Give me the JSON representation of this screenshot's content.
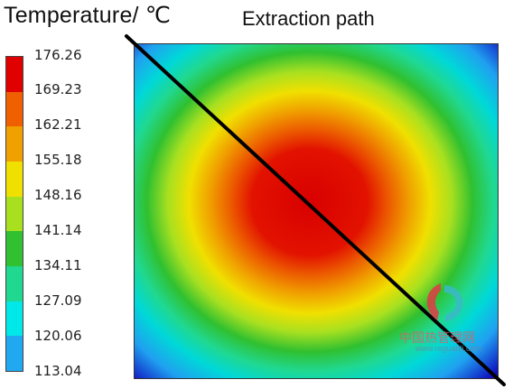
{
  "header": {
    "legend_title": "Temperature/ ℃",
    "path_label": "Extraction path"
  },
  "legend": {
    "labels": [
      "176.26",
      "169.23",
      "162.21",
      "155.18",
      "148.16",
      "141.14",
      "134.11",
      "127.09",
      "120.06",
      "113.04"
    ],
    "colors": [
      "#e00000",
      "#f06000",
      "#f0a000",
      "#f0e000",
      "#a8e020",
      "#30c030",
      "#20d890",
      "#00e8e8",
      "#20a8f0",
      "#1010d0"
    ]
  },
  "watermark": {
    "site_cn": "中国热管理网",
    "site_url": "www.reguanli.com"
  }
}
